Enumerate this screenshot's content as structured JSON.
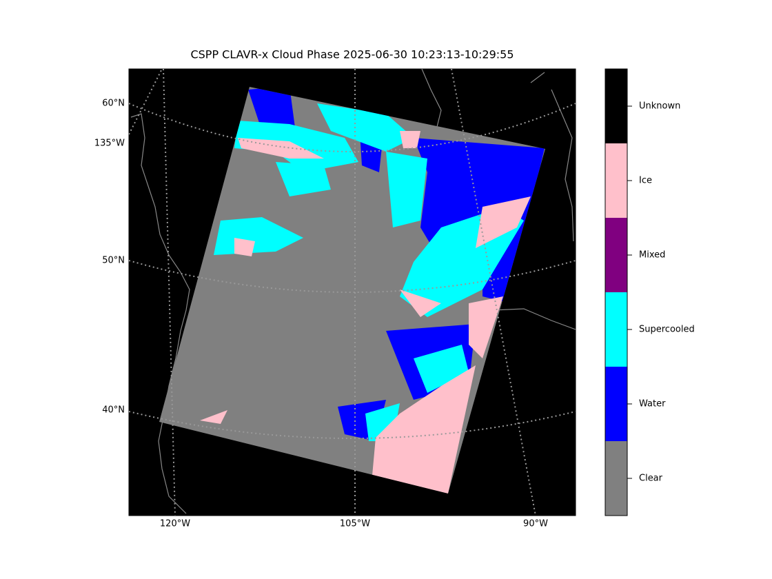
{
  "map": {
    "title": "CSPP CLAVR-x Cloud Phase 2025-06-30 10:23:13-10:29:55",
    "lat_labels": [
      "60°N",
      "50°N",
      "40°N"
    ],
    "lon_label_left": "135°W",
    "lon_labels_bottom": [
      "120°W",
      "105°W",
      "90°W"
    ],
    "legend": [
      {
        "label": "Clear",
        "color": "#808080"
      },
      {
        "label": "Water",
        "color": "#0000ff"
      },
      {
        "label": "Supercooled",
        "color": "#00ffff"
      },
      {
        "label": "Mixed",
        "color": "#800080"
      },
      {
        "label": "Ice",
        "color": "#ffc0cb"
      },
      {
        "label": "Unknown",
        "color": "#000000"
      }
    ]
  }
}
